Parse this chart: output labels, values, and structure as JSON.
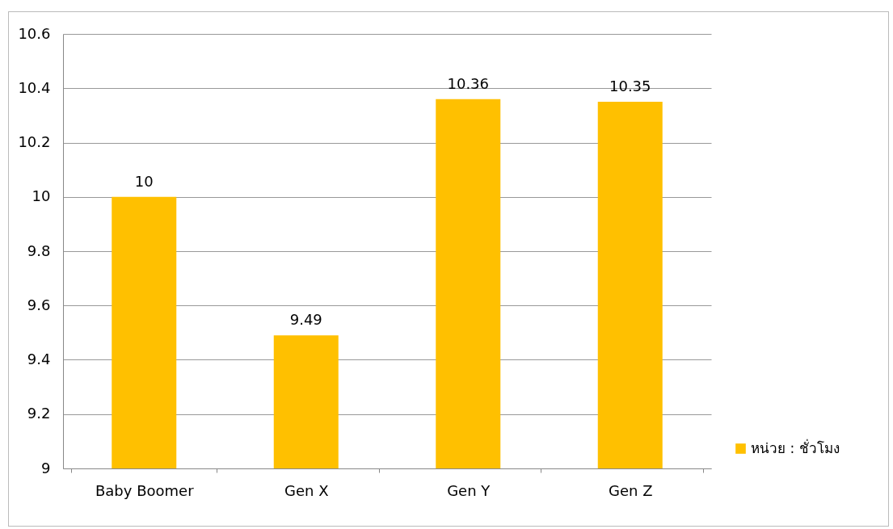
{
  "chart_data": {
    "type": "bar",
    "categories": [
      "Baby Boomer",
      "Gen X",
      "Gen Y",
      "Gen Z"
    ],
    "series": [
      {
        "name": "หน่วย : ชั่วโมง",
        "color": "#ffc000",
        "values": [
          10,
          9.49,
          10.36,
          10.35
        ]
      }
    ],
    "ylim": [
      9,
      10.6
    ],
    "yticks": [
      9,
      9.2,
      9.4,
      9.6,
      9.8,
      10,
      10.2,
      10.4,
      10.6
    ],
    "grid": "y",
    "legend": "bottom right",
    "data_labels": true
  }
}
